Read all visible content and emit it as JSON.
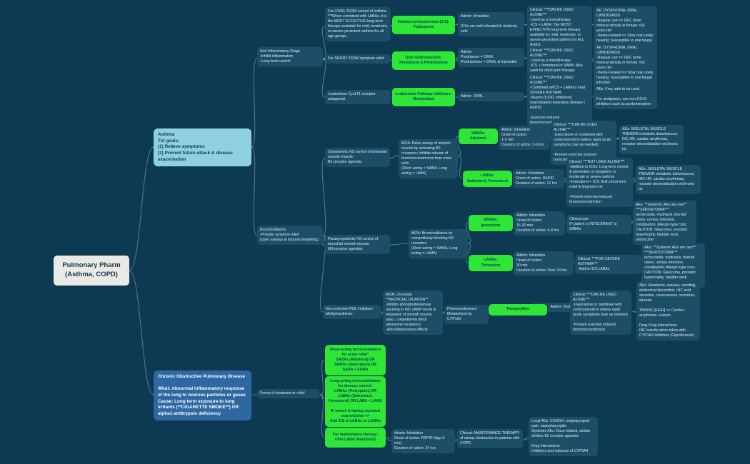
{
  "colors": {
    "background": "#0d3a52",
    "node": "#1d4e67",
    "drug_highlight": "#2de636",
    "asthma_topic": "#8ed0e2",
    "copd_topic": "#2e68a1",
    "root_box": "#e9e9e5",
    "connector": "#8fb8ca"
  },
  "map": {
    "root": "Pulmonary Pharm\n(Asthma, COPD)",
    "asthma": {
      "topic": "Asthma\nTxt goals:\n(1) Relieve symptoms\n(2) Prevent future attack & disease exacerbation",
      "anti_inflammatory": {
        "label": "Anti-Inflammatory Drugs\n-Inhibit inflammation\n-Long-term control",
        "ics": {
          "desc": "For LONG-TERM control of asthma\n***When combined with LABAs, it is the MOST EFFECTIVE long-term therapy available for mild, moderate, or severe persistent asthma for all age groups",
          "drug": "Inhaled corticosteroids (ICS):\nFluticasone",
          "admin": "Admin: Inhalation\n\nICSs are well-tolerated & relatively safe",
          "clinical": "Clinical: ***CAN BE USED ALONE***\n-Used as a monotherapy\n-ICS + LABA: The MOST EFFECTIVE long-term therapy available for mild, moderate, or severe persistent asthma for ALL AGES.",
          "ae": "AE: DYSPHONIA, ORAL CANDIDIASIS\n-Regular use => DEC bone mineral density in female >65 years old\n-Dental-related => Slow oral cavity healing; Susceptible to oral fungal infection"
        },
        "oral_steroids": {
          "desc": "For SHORT-TERM symptom relief",
          "drug": "Oral corticosteroids:\nPrednisone & Prednisolone",
          "admin": "Admin:\nPrednisone = ORAL\nPrednisolone = ORAL & Injectable",
          "clinical": "Clinical: ***CAN BE USED ALONE***\n-Used as a monotherapy\n-ICS + formoterol or SABA: Also used for short-term therapy",
          "ae": "AE: DYSPHONIA, ORAL CANDIDIASIS\n-Regular use => DEC bone mineral density in female >65 years old\n-Dental-related => Slow oral cavity healing; Susceptible to oral fungal infection"
        },
        "leukotriene": {
          "desc": "Leukotriene CysLT1 receptor antagonist:",
          "drug": "Leukotriene Pathway Inhibitors:\nMontelukast",
          "admin": "Admin: ORAL",
          "clinical": "Clinical: ***CAN BE USED ALONE***\n-Combined w/ICS + LABA to treat SEVERE ASTHMA\n-Aspirin (COX1 inhibitors) exacerbated respiratory disease ( AERD)\n\n-Exercise induced bronchoconstriction",
          "ae": "AEs: Few, safe to be used\n\nFor analgesics, use non-COX1 inhibitors such as acetominophen"
        }
      },
      "bronchodilators": {
        "label": "Bronchodilators\n-Provide symptom relief\n(open airways & improve breathing)",
        "beta2": {
          "label": "Sympathetic NS control of bronchial smooth muscle:\nB2 receptor agonists",
          "moa": "MOA: Relax airway of smooth muscle by activating B2 receptors; Inhibits release of bronchoconstrictors from mast cells\n(Short acting = SABA, Long acting = LABA)",
          "saba": {
            "drug": "SABAs:\nAlbuterol",
            "admin": "Admin: Inhalation\nOnset of action:\n1-5 min\nDuration of action: 2-6 hrs",
            "clinical": "Clinical: ***CAN BE USED ALONE***\n-Used alone or combined with corticosteroid to relieve rapid acute symptoms (use as needed)\n\n-Prevent exercise induced bronchoconstriction",
            "ae": "AEs: SKELETAL MUSCLE TREMOR metabolic disturbances, INC HR, cardiac arrythmias, receptor desensitization w/chronic txt"
          },
          "laba": {
            "drug": "LABAs:\nSalmeterol, Formoterol",
            "admin": "Admin: Inhalation\nOnset of action: RAPID\nDuration of action: 12 hrs",
            "clinical": "Clinical: ***NOT USED ALONE***\n-Addition to ICSs: Long-term control & prevention of symptoms in moderate or severe asthma\n-Formoterol + ICS: Both short term relief & long-term txt\n\n-Prevent exercise induced bronchoconstriction",
            "ae": "AEs: SKELETAL MUSCLE TREMOR metabolic disturbances, INC HR, cardiac arrythmias, receptor desensitization w/chronic txt"
          }
        },
        "m3": {
          "label": "Parasympathetic NS control of bronchial smooth muscle:\nM3 receptor agonists",
          "moa": "MOA: Bronchodilation by competitively blocking M3 receptors\n(Short acting = SAMA, Long acting = LAMA)",
          "sama": {
            "drug": "SAMAs:\nIpatropium",
            "admin": "Admin: Inhalation\nOnset of action:\n15-30 min\nDuration of action: 6-8 hrs",
            "clinical": "Clinical use:\nIF patient is INTOLERANT to SABAs",
            "ae": "AEs: **Systemic AEs are rare**\n***XEROSTOMIA***\ntachycardia, mydriasis, blurred vision, urinary retention, constipation. Allergic-type rxns; CAUTION: Glaucoma, prostatic hypertrophy, bladder neck obstruction"
          },
          "lama": {
            "drug": "LAMAs:\nTiotropium",
            "admin": "Admin: Inhalation\nOnset of action:\n30 min\nDuration of action: Over 24 hrs",
            "clinical": "Clinical: ***FOR SEVERE ASTHMA***\n-Add to ICS-LABAs",
            "ae": "AEs: **Systemic AEs are rare**\n***XEROSTOMIA***\ntachycardia, mydriasis, blurred vision, urinary retention, constipation; Allergic-type rxns; CAUTION: Glaucoma, prostatic hypertrophy, bladder neck obstruction"
          }
        },
        "pde": {
          "label": "Non-selective PDE inhibitors:\nMethylxanthines",
          "moa": "MOA: Uncertain\n**BRONCIAL DILATION**\n-Inhibits phosphodiesterase resulting in INC cAMP levels & relaxation of smooth muscle (also, competitively block adenosine receptors)\n-Anti-inflammatory effects",
          "pk": "Pharmacokinetics:\nMetabolized by CYP1A2",
          "drug": "Theophylline",
          "admin": "Admin: Oral",
          "clinical": "Clinical: ***CAN BE USED ALONE***\n-Used alone or combined with corticosteroid to relieve rapid acute symptoms (use as needed)\n\n-Prevent exercise induced bronchoconstriction",
          "ae": "AEs: Headache, nausea, vomiting, abdominal discomfort, INC acid secretion, nervousness, insomnia, diuresis\n\nTAKING [HIGH] => Cardiac arrythmias, seizure\n\nDrug-Drug interactions:\nINC toxicity when taken with CYP1A2 inhibitors (Ciprofloxacin)"
        }
      }
    },
    "copd": {
      "topic": "Chronic Obstructive Pulmonary Disease\n\nWhat: Abnormal inflammatory response of the lung to noxious particles or gases\nCause: Long term exposure to lung irritants (**CIGARETTE SMOKE**) OR alpha1-antitrypsin deficiency",
      "forms_label": "Forms of treatment or relief",
      "short_acting": "Short-acting bronchodilators for acute relief:\nSABAs (Albuterol)  OR\nSAMAs (Ipatropium)  OR\nSABA + SAMA",
      "long_acting": "Long-acting bronchodilators for disease control:\nLAMAs (Tiotropium)  OR\nLABAs (Salmeterol, Formoterol) OR LABA + LAMA\n\nIF severe & having repeated exacerbation =>\nAdd ICS to LABAs or LAMAs",
      "ultra_laba": {
        "drug": "For maintenance therapy:\nUltra LABA (Valenterol)",
        "admin": "Admin: Inhalation\nOnset of action: RAPID (App.5 min)\nDuration of action: 24 hrs",
        "clinical": "Clinical: MAINTENANCE THERAPY of airway obstruction in patients with COPD",
        "ae": "Local AEs: COUGH, oropharyngeal pain, nasopharyngitis\nSystemic AEs: Dose-related, similar w/other B2 receptor agonists\n\nDrug interactions:\nInhibitors and inducers of CYP3A4"
      }
    }
  }
}
